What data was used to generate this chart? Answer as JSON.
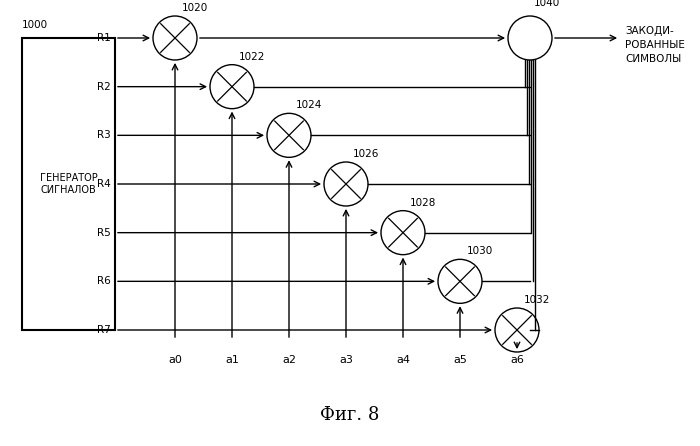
{
  "bg_color": "#ffffff",
  "fig_width": 7.0,
  "fig_height": 4.46,
  "box_label_line1": "ГЕНЕРАТОР",
  "box_label_line2": "СИГНАЛОВ",
  "box_number": "1000",
  "row_labels": [
    "R1",
    "R2",
    "R3",
    "R4",
    "R5",
    "R6",
    "R7"
  ],
  "col_labels": [
    "a0",
    "a1",
    "a2",
    "a3",
    "a4",
    "a5",
    "a6"
  ],
  "mult_labels": [
    "1020",
    "1022",
    "1024",
    "1026",
    "1028",
    "1030",
    "1032"
  ],
  "summer_label": "1040",
  "output_text_line1": "ЗАКОДИ-",
  "output_text_line2": "РОВАННЫЕ",
  "output_text_line3": "СИМВОЛЫ",
  "fig_caption": "Фиг. 8",
  "line_color": "#000000",
  "text_color": "#000000"
}
